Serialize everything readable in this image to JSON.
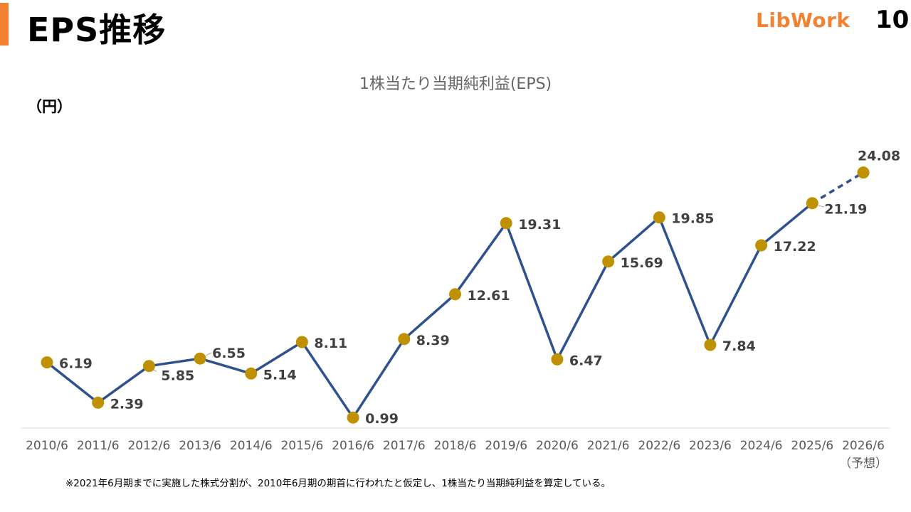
{
  "header": {
    "title": "EPS推移",
    "logo_text": "LibWork",
    "page_number": "10"
  },
  "colors": {
    "accent": "#f08232",
    "line": "#2f528f",
    "marker": "#bf9000",
    "axis": "#d9d9d9"
  },
  "chart_data": {
    "type": "line",
    "title": "1株当たり当期純利益(EPS)",
    "unit_label": "（円）",
    "categories": [
      "2010/6",
      "2011/6",
      "2012/6",
      "2013/6",
      "2014/6",
      "2015/6",
      "2016/6",
      "2017/6",
      "2018/6",
      "2019/6",
      "2020/6",
      "2021/6",
      "2022/6",
      "2023/6",
      "2024/6",
      "2025/6",
      "2026/6"
    ],
    "forecast_note": "（予想）",
    "values": [
      6.19,
      2.39,
      5.85,
      6.55,
      5.14,
      8.11,
      0.99,
      8.39,
      12.61,
      19.31,
      6.47,
      15.69,
      19.85,
      7.84,
      17.22,
      21.19,
      24.08
    ],
    "value_labels": [
      "6.19",
      "2.39",
      "5.85",
      "6.55",
      "5.14",
      "8.11",
      "0.99",
      "8.39",
      "12.61",
      "19.31",
      "6.47",
      "15.69",
      "19.85",
      "7.84",
      "17.22",
      "21.19",
      "24.08"
    ],
    "forecast_from_index": 15,
    "ylim": [
      0,
      27
    ],
    "grid": false,
    "legend": "none"
  },
  "footnote": "※2021年6月期までに実施した株式分割が、2010年6月期の期首に行われたと仮定し、1株当たり当期純利益を算定している。"
}
